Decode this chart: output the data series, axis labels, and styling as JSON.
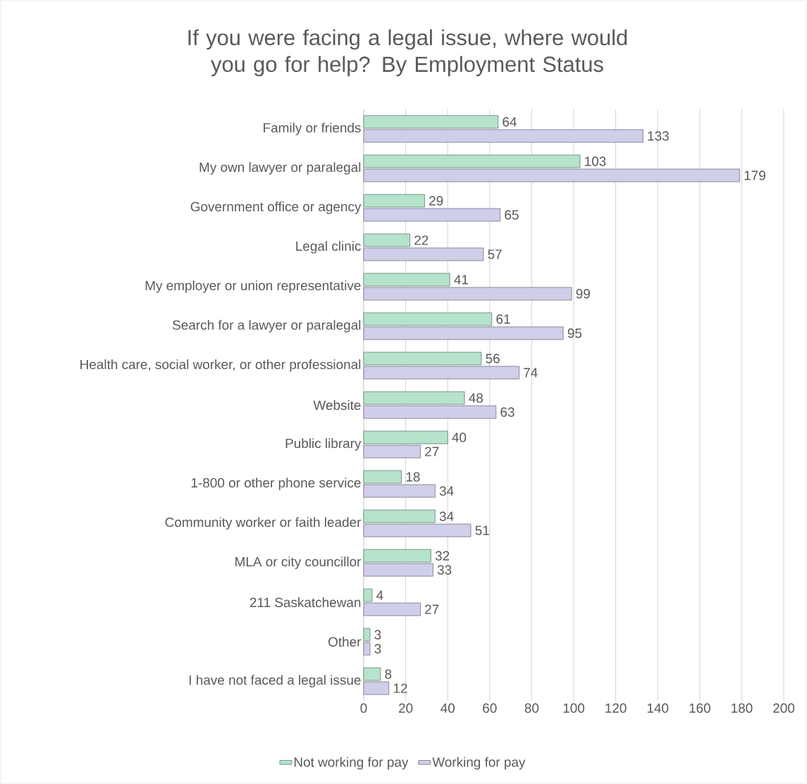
{
  "chart_data": {
    "type": "bar",
    "orientation": "horizontal",
    "title": "If you were facing a legal issue, where would you go for help? By Employment Status",
    "categories": [
      "Family or friends",
      "My own lawyer or paralegal",
      "Government office or agency",
      "Legal clinic",
      "My employer or union representative",
      "Search for a lawyer or paralegal",
      "Health care, social worker, or other professional",
      "Website",
      "Public library",
      "1-800 or other phone service",
      "Community worker or faith leader",
      "MLA or city councillor",
      "211 Saskatchewan",
      "Other",
      "I have not faced a legal issue"
    ],
    "series": [
      {
        "name": "Not working for pay",
        "color": "#b5e3cc",
        "values": [
          64,
          103,
          29,
          22,
          41,
          61,
          56,
          48,
          40,
          18,
          34,
          32,
          4,
          3,
          8
        ]
      },
      {
        "name": "Working for pay",
        "color": "#cfcfea",
        "values": [
          133,
          179,
          65,
          57,
          99,
          95,
          74,
          63,
          27,
          34,
          51,
          33,
          27,
          3,
          12
        ]
      }
    ],
    "xlim": [
      0,
      200
    ],
    "xticks": [
      0,
      20,
      40,
      60,
      80,
      100,
      120,
      140,
      160,
      180,
      200
    ],
    "grid": "x",
    "legend": "bottom",
    "data_labels": true
  }
}
